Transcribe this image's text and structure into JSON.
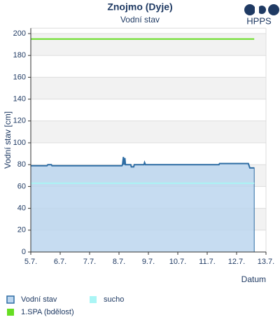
{
  "chart_data": {
    "type": "line",
    "title": "Znojmo (Dyje)",
    "subtitle": "Vodní stav",
    "logo": "HPPS",
    "x_label": "Datum",
    "y_label": "Vodní stav [cm]",
    "xlim": [
      5,
      13
    ],
    "ylim": [
      0,
      205
    ],
    "xticks": [
      {
        "value": 5,
        "label": "5.7."
      },
      {
        "value": 6,
        "label": "6.7."
      },
      {
        "value": 7,
        "label": "7.7."
      },
      {
        "value": 8,
        "label": "8.7."
      },
      {
        "value": 9,
        "label": "9.7."
      },
      {
        "value": 10,
        "label": "10.7."
      },
      {
        "value": 11,
        "label": "11.7."
      },
      {
        "value": 12,
        "label": "12.7."
      },
      {
        "value": 13,
        "label": "13.7."
      }
    ],
    "yticks": [
      0,
      20,
      40,
      60,
      80,
      100,
      120,
      140,
      160,
      180,
      200
    ],
    "grid": true,
    "series": [
      {
        "name": "Vodní stav",
        "color": "#2e6da4",
        "fill": "#bcd6ef",
        "area": true,
        "x": [
          5.0,
          5.55,
          5.58,
          5.7,
          5.72,
          8.1,
          8.12,
          8.15,
          8.17,
          8.2,
          8.22,
          8.25,
          8.4,
          8.42,
          8.5,
          8.52,
          8.85,
          8.87,
          8.9,
          9.0,
          11.4,
          11.42,
          12.4,
          12.45,
          12.6
        ],
        "values": [
          79,
          79,
          80,
          80,
          79,
          79,
          80,
          87,
          80,
          86,
          80,
          80,
          80,
          78,
          78,
          80,
          80,
          82,
          80,
          80,
          80,
          81,
          81,
          77,
          77
        ]
      },
      {
        "name": "sucho",
        "color": "#aaf5f5",
        "x": [
          5.0,
          12.6
        ],
        "values": [
          63,
          63
        ]
      },
      {
        "name": "1.SPA (bdělost)",
        "color": "#66dd22",
        "x": [
          5.0,
          12.6
        ],
        "values": [
          195,
          195
        ]
      }
    ]
  }
}
